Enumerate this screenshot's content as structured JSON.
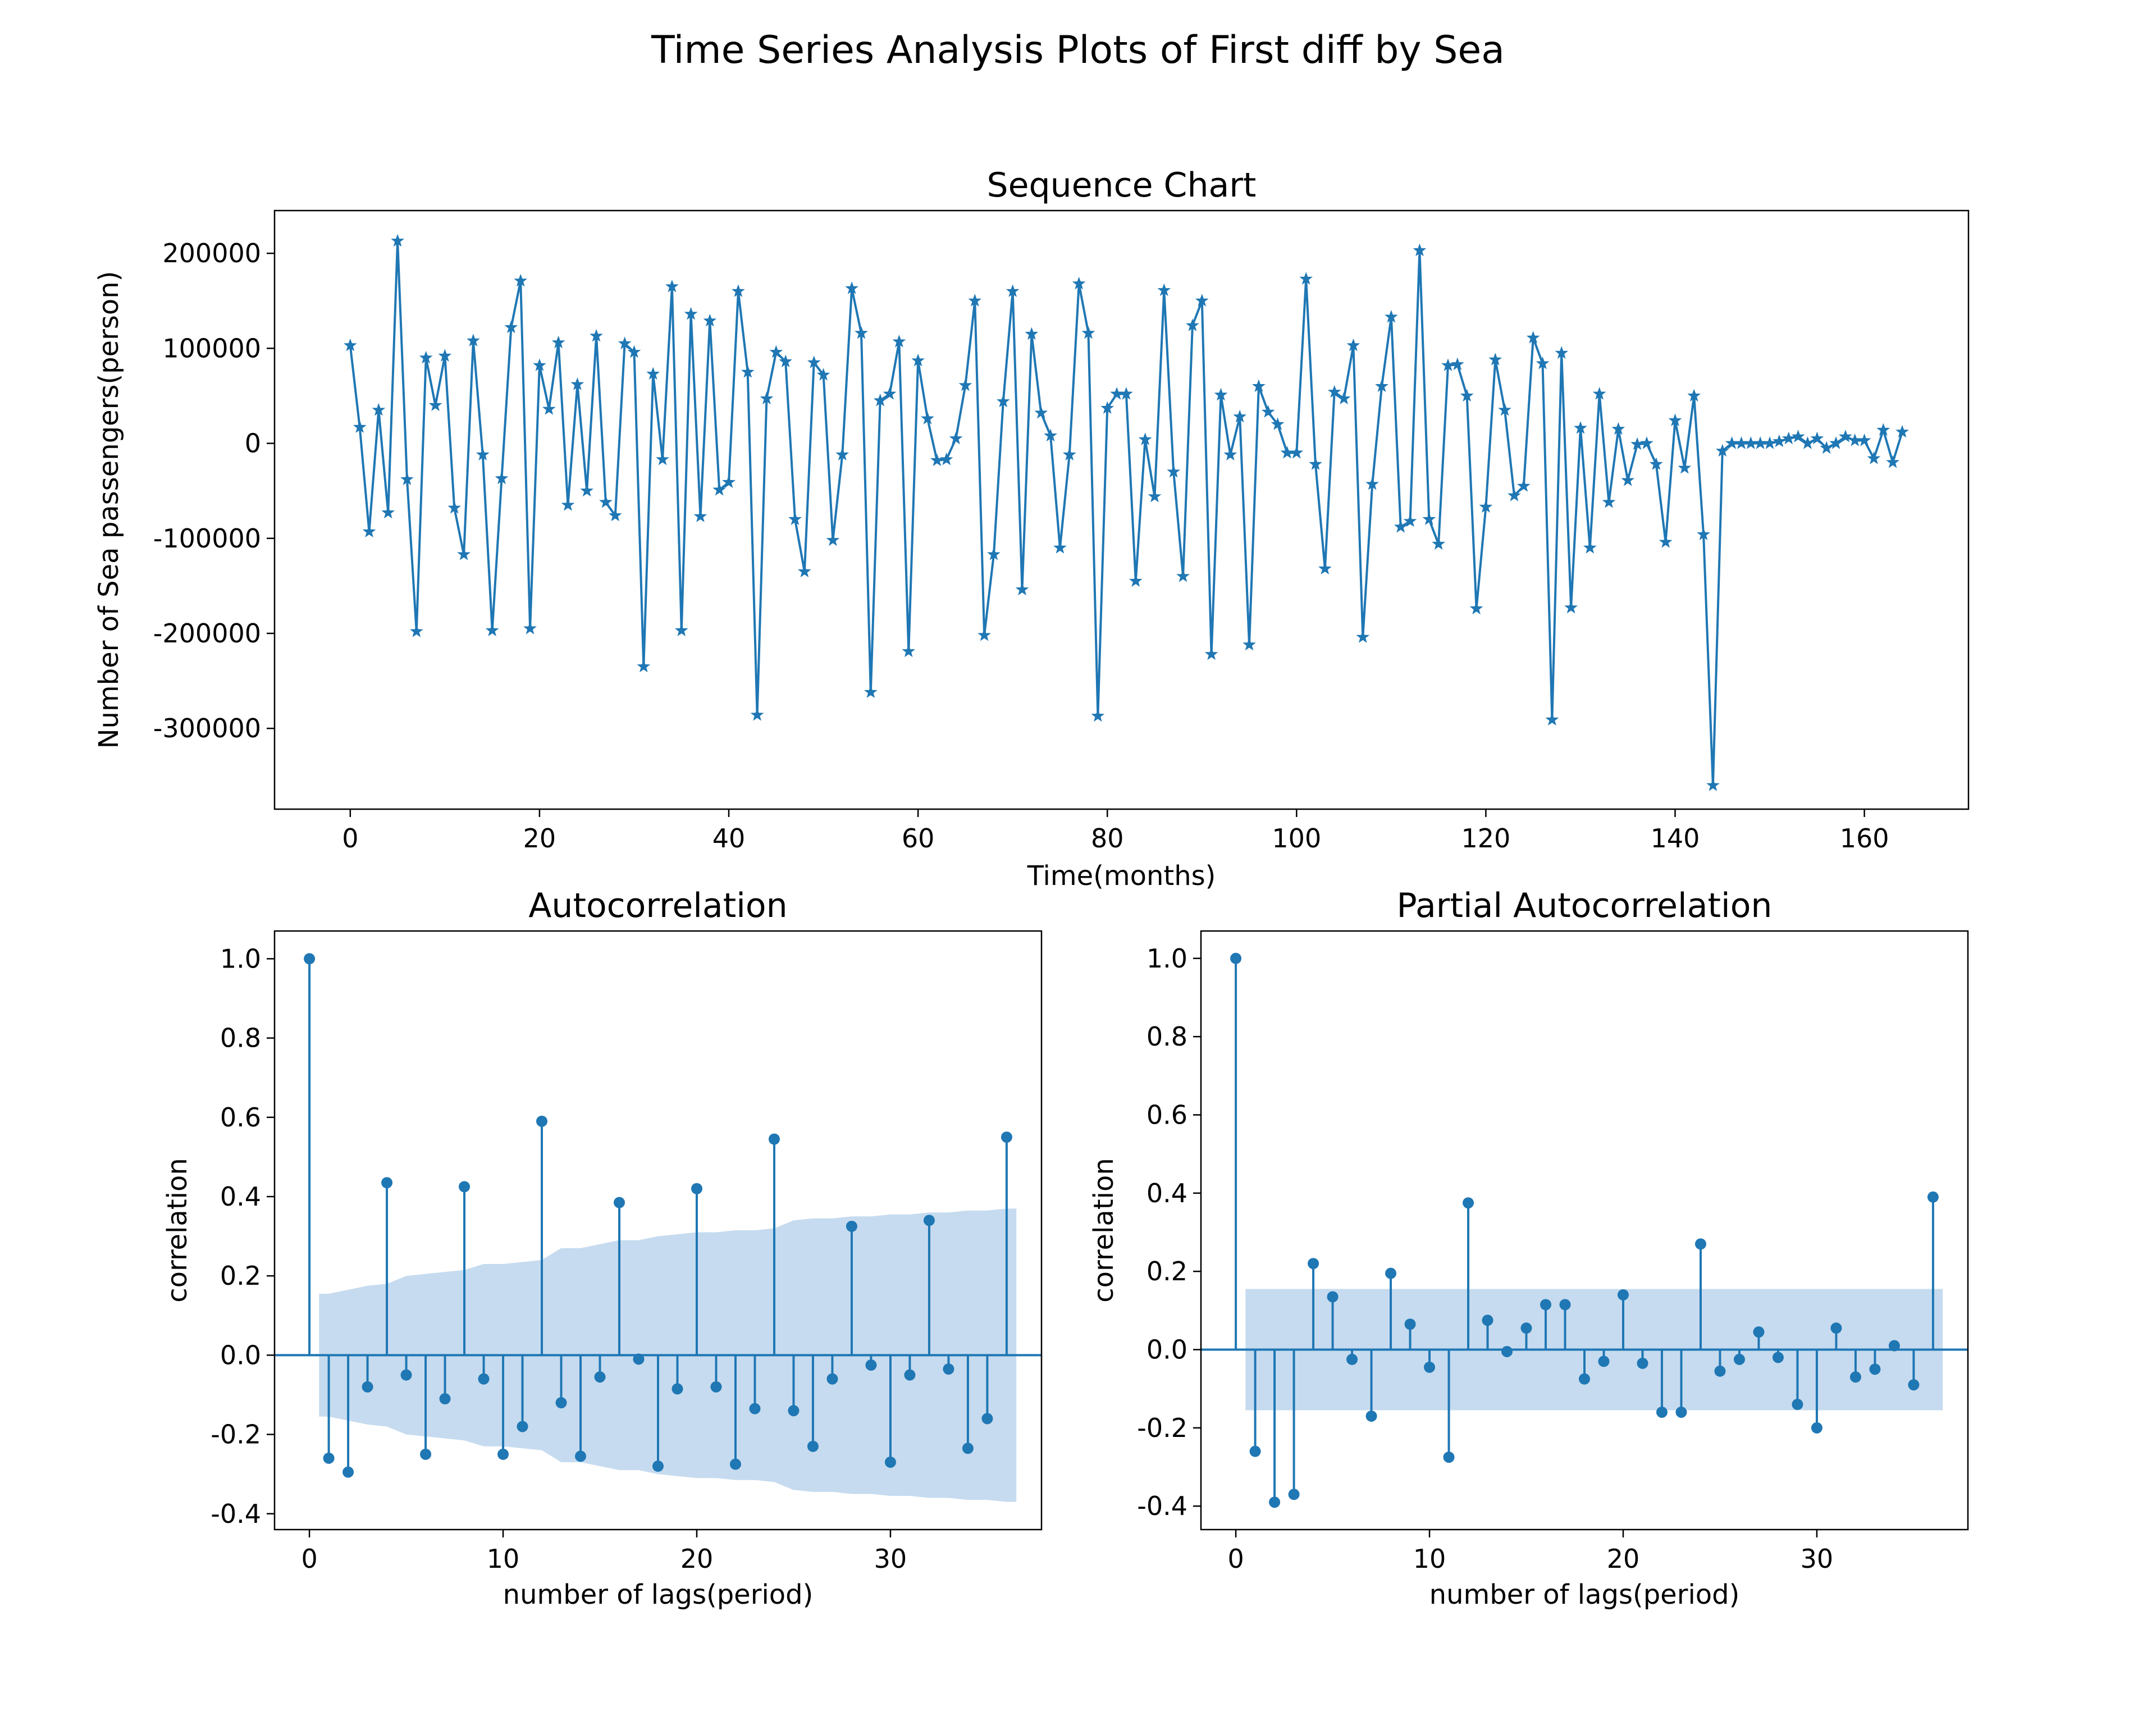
{
  "figure": {
    "title": "Time Series Analysis Plots of First diff by Sea",
    "series_color": "#1f77b4",
    "band_color": "#c6dbef"
  },
  "chart_data": [
    {
      "type": "line",
      "marker": "star",
      "title": "Sequence Chart",
      "xlabel": "Time(months)",
      "ylabel": "Number of Sea passengers(person)",
      "xlim": [
        -8,
        171
      ],
      "ylim": [
        -385000,
        245000
      ],
      "xticks": [
        0,
        20,
        40,
        60,
        80,
        100,
        120,
        140,
        160
      ],
      "xtick_labels": [
        "0",
        "20",
        "40",
        "60",
        "80",
        "100",
        "120",
        "140",
        "160"
      ],
      "yticks": [
        200000,
        100000,
        0,
        -100000,
        -200000,
        -300000
      ],
      "ytick_labels": [
        "200000",
        "100000",
        "0",
        "-100000",
        "-200000",
        "-300000"
      ],
      "grid": false,
      "x_start": 0,
      "values": [
        103000,
        17000,
        -93000,
        35000,
        -73000,
        213000,
        -38000,
        -198000,
        90000,
        40000,
        92000,
        -68000,
        -117000,
        108000,
        -12000,
        -197000,
        -37000,
        122000,
        171000,
        -195000,
        82000,
        36000,
        106000,
        -65000,
        62000,
        -50000,
        113000,
        -62000,
        -76000,
        105000,
        96000,
        -235000,
        73000,
        -17000,
        165000,
        -197000,
        136000,
        -77000,
        129000,
        -49000,
        -41000,
        160000,
        75000,
        -286000,
        47000,
        96000,
        86000,
        -80000,
        -135000,
        85000,
        72000,
        -102000,
        -12000,
        163000,
        116000,
        -262000,
        45000,
        52000,
        107000,
        -219000,
        87000,
        26000,
        -18000,
        -17000,
        5000,
        61000,
        150000,
        -202000,
        -117000,
        44000,
        160000,
        -154000,
        115000,
        32000,
        8000,
        -110000,
        -12000,
        168000,
        116000,
        -287000,
        37000,
        52000,
        52000,
        -145000,
        4000,
        -56000,
        161000,
        -30000,
        -140000,
        124000,
        150000,
        -222000,
        51000,
        -12000,
        28000,
        -212000,
        60000,
        33000,
        20000,
        -10000,
        -10000,
        173000,
        -22000,
        -132000,
        54000,
        47000,
        103000,
        -204000,
        -43000,
        60000,
        133000,
        -88000,
        -82000,
        203000,
        -80000,
        -106000,
        82000,
        83000,
        50000,
        -174000,
        -67000,
        88000,
        35000,
        -55000,
        -45000,
        111000,
        84000,
        -291000,
        95000,
        -173000,
        16000,
        -110000,
        52000,
        -62000,
        15000,
        -39000,
        -1000,
        0,
        -22000,
        -104000,
        24000,
        -26000,
        50000,
        -96000,
        -360000,
        -8000,
        0,
        0,
        0,
        0,
        0,
        2000,
        5000,
        7000,
        0,
        5000,
        -5000,
        0,
        7000,
        3000,
        3000,
        -16000,
        14000,
        -20000,
        12000
      ]
    },
    {
      "type": "stem",
      "title": "Autocorrelation",
      "xlabel": "number of lags(period)",
      "ylabel": "correlation",
      "xlim": [
        -1.8,
        37.8
      ],
      "ylim": [
        -0.44,
        1.07
      ],
      "xticks": [
        0,
        10,
        20,
        30
      ],
      "xtick_labels": [
        "0",
        "10",
        "20",
        "30"
      ],
      "yticks": [
        1.0,
        0.8,
        0.6,
        0.4,
        0.2,
        0.0,
        -0.2,
        -0.4
      ],
      "ytick_labels": [
        "1.0",
        "0.8",
        "0.6",
        "0.4",
        "0.2",
        "0.0",
        "-0.2",
        "-0.4"
      ],
      "grid": false,
      "lags": [
        0,
        1,
        2,
        3,
        4,
        5,
        6,
        7,
        8,
        9,
        10,
        11,
        12,
        13,
        14,
        15,
        16,
        17,
        18,
        19,
        20,
        21,
        22,
        23,
        24,
        25,
        26,
        27,
        28,
        29,
        30,
        31,
        32,
        33,
        34,
        35,
        36
      ],
      "values": [
        1.0,
        -0.26,
        -0.295,
        -0.08,
        0.435,
        -0.05,
        -0.25,
        -0.11,
        0.425,
        -0.06,
        -0.25,
        -0.18,
        0.59,
        -0.12,
        -0.255,
        -0.055,
        0.385,
        -0.01,
        -0.28,
        -0.085,
        0.42,
        -0.08,
        -0.275,
        -0.135,
        0.545,
        -0.14,
        -0.23,
        -0.06,
        0.325,
        -0.025,
        -0.27,
        -0.05,
        0.34,
        -0.035,
        -0.235,
        -0.16,
        0.55
      ],
      "confidence_band": {
        "lags": [
          0.5,
          1,
          2,
          3,
          4,
          5,
          6,
          7,
          8,
          9,
          10,
          11,
          12,
          13,
          14,
          15,
          16,
          17,
          18,
          19,
          20,
          21,
          22,
          23,
          24,
          25,
          26,
          27,
          28,
          29,
          30,
          31,
          32,
          33,
          34,
          35,
          36,
          36.5
        ],
        "upper": [
          0.155,
          0.155,
          0.165,
          0.175,
          0.18,
          0.2,
          0.205,
          0.21,
          0.215,
          0.23,
          0.23,
          0.235,
          0.24,
          0.27,
          0.27,
          0.28,
          0.29,
          0.29,
          0.3,
          0.305,
          0.31,
          0.31,
          0.315,
          0.315,
          0.32,
          0.34,
          0.345,
          0.345,
          0.35,
          0.35,
          0.355,
          0.355,
          0.36,
          0.36,
          0.365,
          0.365,
          0.37,
          0.37
        ],
        "lower": [
          -0.155,
          -0.155,
          -0.165,
          -0.175,
          -0.18,
          -0.2,
          -0.205,
          -0.21,
          -0.215,
          -0.23,
          -0.23,
          -0.235,
          -0.24,
          -0.27,
          -0.27,
          -0.28,
          -0.29,
          -0.29,
          -0.3,
          -0.305,
          -0.31,
          -0.31,
          -0.315,
          -0.315,
          -0.32,
          -0.34,
          -0.345,
          -0.345,
          -0.35,
          -0.35,
          -0.355,
          -0.355,
          -0.36,
          -0.36,
          -0.365,
          -0.365,
          -0.37,
          -0.37
        ]
      }
    },
    {
      "type": "stem",
      "title": "Partial Autocorrelation",
      "xlabel": "number of lags(period)",
      "ylabel": "correlation",
      "xlim": [
        -1.8,
        37.8
      ],
      "ylim": [
        -0.46,
        1.07
      ],
      "xticks": [
        0,
        10,
        20,
        30
      ],
      "xtick_labels": [
        "0",
        "10",
        "20",
        "30"
      ],
      "yticks": [
        1.0,
        0.8,
        0.6,
        0.4,
        0.2,
        0.0,
        -0.2,
        -0.4
      ],
      "ytick_labels": [
        "1.0",
        "0.8",
        "0.6",
        "0.4",
        "0.2",
        "0.0",
        "-0.2",
        "-0.4"
      ],
      "grid": false,
      "lags": [
        0,
        1,
        2,
        3,
        4,
        5,
        6,
        7,
        8,
        9,
        10,
        11,
        12,
        13,
        14,
        15,
        16,
        17,
        18,
        19,
        20,
        21,
        22,
        23,
        24,
        25,
        26,
        27,
        28,
        29,
        30,
        31,
        32,
        33,
        34,
        35,
        36
      ],
      "values": [
        1.0,
        -0.26,
        -0.39,
        -0.37,
        0.22,
        0.135,
        -0.025,
        -0.17,
        0.195,
        0.065,
        -0.045,
        -0.275,
        0.375,
        0.075,
        -0.005,
        0.055,
        0.115,
        0.115,
        -0.075,
        -0.03,
        0.14,
        -0.035,
        -0.16,
        -0.16,
        0.27,
        -0.055,
        -0.025,
        0.045,
        -0.02,
        -0.14,
        -0.2,
        0.055,
        -0.07,
        -0.05,
        0.01,
        -0.09,
        0.39
      ],
      "confidence_band": {
        "lags": [
          0.5,
          36.5
        ],
        "upper": [
          0.155,
          0.155
        ],
        "lower": [
          -0.155,
          -0.155
        ]
      }
    }
  ]
}
